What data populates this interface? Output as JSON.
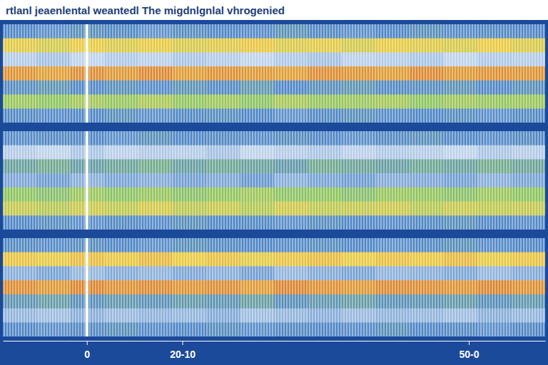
{
  "chart_data": {
    "type": "heatmap",
    "title": "rtlanl jeaenlental weantedl The migdnlgnlal vhrogenied",
    "xlim": [
      -11,
      60
    ],
    "xticks": [
      0,
      {
        "value": 12.5,
        "label": "20-10"
      },
      {
        "value": 50,
        "label": "50-0"
      }
    ],
    "tick_labels": "x",
    "zlim": [
      0,
      1
    ],
    "cells": [
      [
        [
          0.3,
          0.28,
          0.33,
          0.31,
          0.27,
          0.32,
          0.3,
          0.29,
          0.34,
          0.31,
          0.28,
          0.3,
          0.33,
          0.29,
          0.31,
          0.3
        ],
        [
          0.76,
          0.72,
          0.78,
          0.74,
          0.77,
          0.73,
          0.75,
          0.79,
          0.74,
          0.76,
          0.72,
          0.77,
          0.75,
          0.73,
          0.78,
          0.74
        ],
        [
          0.12,
          0.15,
          0.1,
          0.13,
          0.11,
          0.14,
          0.12,
          0.1,
          0.13,
          0.15,
          0.11,
          0.12,
          0.14,
          0.1,
          0.13,
          0.12
        ],
        [
          0.93,
          0.9,
          0.95,
          0.92,
          0.96,
          0.91,
          0.94,
          0.92,
          0.9,
          0.95,
          0.93,
          0.91,
          0.96,
          0.92,
          0.94,
          0.93
        ],
        [
          0.32,
          0.35,
          0.3,
          0.33,
          0.29,
          0.34,
          0.31,
          0.36,
          0.3,
          0.33,
          0.35,
          0.31,
          0.32,
          0.34,
          0.3,
          0.33
        ],
        [
          0.58,
          0.55,
          0.6,
          0.57,
          0.62,
          0.56,
          0.59,
          0.54,
          0.61,
          0.57,
          0.58,
          0.6,
          0.55,
          0.59,
          0.57,
          0.58
        ],
        [
          0.31,
          0.29,
          0.3,
          0.33,
          0.28,
          0.31,
          0.32,
          0.3,
          0.27,
          0.31,
          0.33,
          0.29,
          0.3,
          0.32,
          0.28,
          0.31
        ]
      ],
      [
        [
          0.29,
          0.31,
          0.3,
          0.28,
          0.33,
          0.3,
          0.31,
          0.29,
          0.32,
          0.3,
          0.28,
          0.31,
          0.33,
          0.3,
          0.29,
          0.31
        ],
        [
          0.12,
          0.1,
          0.14,
          0.11,
          0.13,
          0.12,
          0.15,
          0.1,
          0.12,
          0.14,
          0.11,
          0.13,
          0.12,
          0.1,
          0.14,
          0.12
        ],
        [
          0.4,
          0.43,
          0.38,
          0.41,
          0.44,
          0.39,
          0.42,
          0.4,
          0.37,
          0.43,
          0.41,
          0.39,
          0.42,
          0.4,
          0.44,
          0.41
        ],
        [
          0.22,
          0.25,
          0.2,
          0.23,
          0.21,
          0.24,
          0.22,
          0.26,
          0.2,
          0.23,
          0.25,
          0.21,
          0.22,
          0.24,
          0.2,
          0.23
        ],
        [
          0.55,
          0.52,
          0.58,
          0.54,
          0.57,
          0.53,
          0.56,
          0.59,
          0.54,
          0.55,
          0.52,
          0.57,
          0.56,
          0.53,
          0.58,
          0.55
        ],
        [
          0.68,
          0.65,
          0.7,
          0.67,
          0.72,
          0.66,
          0.69,
          0.64,
          0.71,
          0.67,
          0.68,
          0.7,
          0.65,
          0.69,
          0.67,
          0.68
        ],
        [
          0.3,
          0.32,
          0.28,
          0.31,
          0.29,
          0.33,
          0.3,
          0.31,
          0.28,
          0.32,
          0.3,
          0.29,
          0.31,
          0.33,
          0.3,
          0.29
        ]
      ],
      [
        [
          0.31,
          0.29,
          0.32,
          0.3,
          0.28,
          0.33,
          0.31,
          0.3,
          0.29,
          0.32,
          0.3,
          0.28,
          0.31,
          0.33,
          0.29,
          0.3
        ],
        [
          0.8,
          0.77,
          0.82,
          0.79,
          0.83,
          0.78,
          0.81,
          0.76,
          0.8,
          0.82,
          0.78,
          0.81,
          0.79,
          0.83,
          0.77,
          0.8
        ],
        [
          0.2,
          0.23,
          0.18,
          0.21,
          0.19,
          0.22,
          0.2,
          0.24,
          0.18,
          0.21,
          0.23,
          0.19,
          0.2,
          0.22,
          0.18,
          0.21
        ],
        [
          0.95,
          0.92,
          0.97,
          0.94,
          0.96,
          0.93,
          0.95,
          0.91,
          0.97,
          0.94,
          0.92,
          0.96,
          0.95,
          0.93,
          0.97,
          0.94
        ],
        [
          0.35,
          0.38,
          0.33,
          0.36,
          0.34,
          0.37,
          0.35,
          0.39,
          0.33,
          0.36,
          0.38,
          0.34,
          0.35,
          0.37,
          0.33,
          0.36
        ],
        [
          0.18,
          0.16,
          0.2,
          0.17,
          0.19,
          0.18,
          0.21,
          0.16,
          0.18,
          0.2,
          0.17,
          0.19,
          0.18,
          0.16,
          0.2,
          0.18
        ],
        [
          0.3,
          0.28,
          0.31,
          0.33,
          0.29,
          0.3,
          0.32,
          0.28,
          0.31,
          0.3,
          0.29,
          0.33,
          0.3,
          0.31,
          0.28,
          0.3
        ]
      ]
    ]
  }
}
